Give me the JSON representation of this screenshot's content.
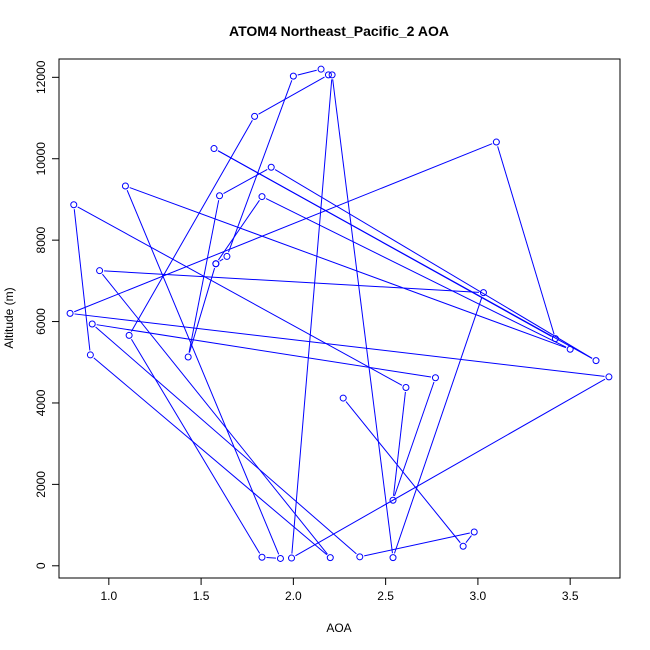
{
  "chart_data": {
    "type": "line",
    "title": "ATOM4 Northeast_Pacific_2 AOA",
    "xlabel": "AOA",
    "ylabel": "Altitude (m)",
    "xlim": [
      0.73,
      3.77
    ],
    "ylim": [
      -300,
      12450
    ],
    "x_ticks": [
      1.0,
      1.5,
      2.0,
      2.5,
      3.0,
      3.5
    ],
    "x_tick_labels": [
      "1.0",
      "1.5",
      "2.0",
      "2.5",
      "3.0",
      "3.5"
    ],
    "y_ticks": [
      0,
      2000,
      4000,
      6000,
      8000,
      10000,
      12000
    ],
    "y_tick_labels": [
      "0",
      "2000",
      "4000",
      "6000",
      "8000",
      "10000",
      "12000"
    ],
    "grid": false,
    "series_color": "#0000ff",
    "marker": "open-circle",
    "series": [
      {
        "x": [
          2.27,
          2.92,
          2.98,
          2.36,
          0.91,
          2.77,
          2.54,
          2.61,
          0.81,
          0.9,
          2.2,
          0.95,
          3.03,
          2.54,
          2.21,
          1.99,
          3.71,
          0.79,
          3.1,
          3.42,
          1.57,
          3.64,
          1.88,
          1.6,
          1.43,
          1.58,
          1.83,
          3.5,
          1.09,
          1.93,
          1.83,
          1.11,
          1.79,
          2.19,
          2.15,
          2.0,
          1.64,
          1.58
        ],
        "y": [
          4120,
          480,
          830,
          220,
          5940,
          4620,
          1610,
          4380,
          8870,
          5180,
          200,
          7250,
          6710,
          200,
          12060,
          190,
          4640,
          6200,
          10410,
          5580,
          10250,
          5040,
          9790,
          9090,
          5130,
          7420,
          9070,
          5320,
          9330,
          180,
          210,
          5660,
          11040,
          12060,
          12200,
          12030,
          7600,
          7420
        ]
      }
    ]
  }
}
